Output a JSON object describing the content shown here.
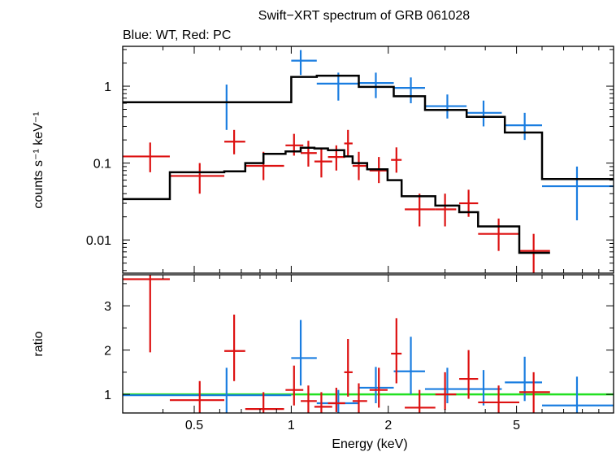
{
  "chart_data": {
    "type": "scatter",
    "title": "Swift−XRT spectrum of GRB 061028",
    "subtitle": "Blue: WT, Red: PC",
    "xlabel": "Energy (keV)",
    "x_scale": "log",
    "xlim": [
      0.3,
      10
    ],
    "x_ticks": [
      {
        "v": 0.5,
        "label": "0.5"
      },
      {
        "v": 1,
        "label": "1"
      },
      {
        "v": 2,
        "label": "2"
      },
      {
        "v": 5,
        "label": "5"
      }
    ],
    "panels": [
      {
        "id": "spectrum",
        "ylabel": "counts s⁻¹ keV⁻¹",
        "y_scale": "log",
        "ylim": [
          0.0037,
          3.3
        ],
        "y_ticks": [
          {
            "v": 1,
            "label": "1"
          },
          {
            "v": 0.1,
            "label": "0.1"
          },
          {
            "v": 0.01,
            "label": "0.01"
          }
        ],
        "series": [
          {
            "color": "#1a7de0",
            "kind": "errorbar",
            "points": [
              {
                "x": 0.63,
                "xlo": 0.3,
                "xhi": 1.0,
                "y": 0.62,
                "ylo": 0.27,
                "yhi": 1.05
              },
              {
                "x": 1.07,
                "xlo": 1.0,
                "xhi": 1.2,
                "y": 2.15,
                "ylo": 1.4,
                "yhi": 2.95
              },
              {
                "x": 1.4,
                "xlo": 1.2,
                "xhi": 1.62,
                "y": 1.08,
                "ylo": 0.65,
                "yhi": 1.5
              },
              {
                "x": 1.83,
                "xlo": 1.62,
                "xhi": 2.08,
                "y": 1.1,
                "ylo": 0.7,
                "yhi": 1.5
              },
              {
                "x": 2.35,
                "xlo": 2.08,
                "xhi": 2.6,
                "y": 0.95,
                "ylo": 0.6,
                "yhi": 1.3
              },
              {
                "x": 3.05,
                "xlo": 2.6,
                "xhi": 3.5,
                "y": 0.55,
                "ylo": 0.38,
                "yhi": 0.78
              },
              {
                "x": 3.95,
                "xlo": 3.5,
                "xhi": 4.5,
                "y": 0.45,
                "ylo": 0.3,
                "yhi": 0.65
              },
              {
                "x": 5.3,
                "xlo": 4.6,
                "xhi": 6.0,
                "y": 0.31,
                "ylo": 0.2,
                "yhi": 0.45
              },
              {
                "x": 7.7,
                "xlo": 6.0,
                "xhi": 10.0,
                "y": 0.05,
                "ylo": 0.018,
                "yhi": 0.09
              }
            ]
          },
          {
            "color": "#dd1111",
            "kind": "errorbar",
            "points": [
              {
                "x": 0.365,
                "xlo": 0.3,
                "xhi": 0.42,
                "y": 0.122,
                "ylo": 0.076,
                "yhi": 0.185
              },
              {
                "x": 0.52,
                "xlo": 0.42,
                "xhi": 0.62,
                "y": 0.068,
                "ylo": 0.04,
                "yhi": 0.1
              },
              {
                "x": 0.665,
                "xlo": 0.62,
                "xhi": 0.72,
                "y": 0.19,
                "ylo": 0.13,
                "yhi": 0.27
              },
              {
                "x": 0.82,
                "xlo": 0.72,
                "xhi": 0.95,
                "y": 0.092,
                "ylo": 0.06,
                "yhi": 0.14
              },
              {
                "x": 1.02,
                "xlo": 0.96,
                "xhi": 1.09,
                "y": 0.17,
                "ylo": 0.125,
                "yhi": 0.24
              },
              {
                "x": 1.13,
                "xlo": 1.07,
                "xhi": 1.2,
                "y": 0.135,
                "ylo": 0.09,
                "yhi": 0.195
              },
              {
                "x": 1.24,
                "xlo": 1.18,
                "xhi": 1.34,
                "y": 0.105,
                "ylo": 0.065,
                "yhi": 0.155
              },
              {
                "x": 1.38,
                "xlo": 1.3,
                "xhi": 1.47,
                "y": 0.12,
                "ylo": 0.08,
                "yhi": 0.17
              },
              {
                "x": 1.5,
                "xlo": 1.46,
                "xhi": 1.55,
                "y": 0.18,
                "ylo": 0.12,
                "yhi": 0.27
              },
              {
                "x": 1.62,
                "xlo": 1.55,
                "xhi": 1.72,
                "y": 0.092,
                "ylo": 0.06,
                "yhi": 0.14
              },
              {
                "x": 1.87,
                "xlo": 1.75,
                "xhi": 1.99,
                "y": 0.08,
                "ylo": 0.055,
                "yhi": 0.12
              },
              {
                "x": 2.12,
                "xlo": 2.04,
                "xhi": 2.2,
                "y": 0.11,
                "ylo": 0.075,
                "yhi": 0.16
              },
              {
                "x": 2.5,
                "xlo": 2.25,
                "xhi": 2.8,
                "y": 0.025,
                "ylo": 0.015,
                "yhi": 0.04
              },
              {
                "x": 3.0,
                "xlo": 2.8,
                "xhi": 3.25,
                "y": 0.025,
                "ylo": 0.015,
                "yhi": 0.04
              },
              {
                "x": 3.55,
                "xlo": 3.32,
                "xhi": 3.8,
                "y": 0.03,
                "ylo": 0.02,
                "yhi": 0.045
              },
              {
                "x": 4.4,
                "xlo": 3.8,
                "xhi": 5.1,
                "y": 0.012,
                "ylo": 0.0072,
                "yhi": 0.019
              },
              {
                "x": 5.65,
                "xlo": 5.1,
                "xhi": 6.35,
                "y": 0.0072,
                "ylo": 0.0037,
                "yhi": 0.012
              }
            ]
          },
          {
            "color": "#000000",
            "kind": "step",
            "edges": [
              0.3,
              1.0,
              1.2,
              1.62,
              2.08,
              2.6,
              3.5,
              4.6,
              6.0,
              10.0
            ],
            "values": [
              0.62,
              1.32,
              1.37,
              0.98,
              0.74,
              0.49,
              0.4,
              0.25,
              0.062
            ]
          },
          {
            "color": "#000000",
            "kind": "step",
            "edges": [
              0.3,
              0.42,
              0.62,
              0.72,
              0.82,
              0.96,
              1.07,
              1.18,
              1.3,
              1.46,
              1.55,
              1.72,
              1.99,
              2.2,
              2.8,
              3.32,
              3.8,
              5.1,
              6.35
            ],
            "values": [
              0.034,
              0.076,
              0.078,
              0.1,
              0.132,
              0.142,
              0.158,
              0.155,
              0.147,
              0.122,
              0.1,
              0.083,
              0.06,
              0.037,
              0.028,
              0.023,
              0.015,
              0.0068
            ]
          }
        ]
      },
      {
        "id": "ratio",
        "ylabel": "ratio",
        "y_scale": "linear",
        "ylim": [
          0.58,
          3.7
        ],
        "y_ticks": [
          {
            "v": 1,
            "label": "1"
          },
          {
            "v": 2,
            "label": "2"
          },
          {
            "v": 3,
            "label": "3"
          }
        ],
        "reference_line": {
          "y": 1.0,
          "color": "#22e022"
        },
        "series": [
          {
            "color": "#1a7de0",
            "kind": "errorbar",
            "points": [
              {
                "x": 0.63,
                "xlo": 0.3,
                "xhi": 1.0,
                "y": 0.98,
                "ylo": 0.58,
                "yhi": 1.6
              },
              {
                "x": 1.07,
                "xlo": 1.0,
                "xhi": 1.2,
                "y": 1.82,
                "ylo": 1.2,
                "yhi": 2.68
              },
              {
                "x": 1.4,
                "xlo": 1.2,
                "xhi": 1.62,
                "y": 0.8,
                "ylo": 0.58,
                "yhi": 1.1
              },
              {
                "x": 1.83,
                "xlo": 1.62,
                "xhi": 2.08,
                "y": 1.15,
                "ylo": 0.8,
                "yhi": 1.62
              },
              {
                "x": 2.35,
                "xlo": 2.08,
                "xhi": 2.6,
                "y": 1.52,
                "ylo": 1.0,
                "yhi": 2.3
              },
              {
                "x": 3.05,
                "xlo": 2.6,
                "xhi": 3.5,
                "y": 1.12,
                "ylo": 0.8,
                "yhi": 1.6
              },
              {
                "x": 3.95,
                "xlo": 3.5,
                "xhi": 4.5,
                "y": 1.12,
                "ylo": 0.75,
                "yhi": 1.55
              },
              {
                "x": 5.3,
                "xlo": 4.6,
                "xhi": 6.0,
                "y": 1.27,
                "ylo": 0.85,
                "yhi": 1.85
              },
              {
                "x": 7.7,
                "xlo": 6.0,
                "xhi": 10.0,
                "y": 0.75,
                "ylo": 0.58,
                "yhi": 1.4
              }
            ]
          },
          {
            "color": "#dd1111",
            "kind": "errorbar",
            "points": [
              {
                "x": 0.365,
                "xlo": 0.3,
                "xhi": 0.42,
                "y": 3.6,
                "ylo": 1.95,
                "yhi": 3.7
              },
              {
                "x": 0.52,
                "xlo": 0.42,
                "xhi": 0.62,
                "y": 0.87,
                "ylo": 0.58,
                "yhi": 1.3
              },
              {
                "x": 0.665,
                "xlo": 0.62,
                "xhi": 0.72,
                "y": 1.98,
                "ylo": 1.3,
                "yhi": 2.8
              },
              {
                "x": 0.82,
                "xlo": 0.72,
                "xhi": 0.95,
                "y": 0.67,
                "ylo": 0.58,
                "yhi": 1.05
              },
              {
                "x": 1.02,
                "xlo": 0.96,
                "xhi": 1.09,
                "y": 1.1,
                "ylo": 0.75,
                "yhi": 1.65
              },
              {
                "x": 1.13,
                "xlo": 1.07,
                "xhi": 1.2,
                "y": 0.85,
                "ylo": 0.58,
                "yhi": 1.2
              },
              {
                "x": 1.24,
                "xlo": 1.18,
                "xhi": 1.34,
                "y": 0.72,
                "ylo": 0.58,
                "yhi": 1.05
              },
              {
                "x": 1.38,
                "xlo": 1.3,
                "xhi": 1.47,
                "y": 0.8,
                "ylo": 0.6,
                "yhi": 1.15
              },
              {
                "x": 1.5,
                "xlo": 1.46,
                "xhi": 1.55,
                "y": 1.5,
                "ylo": 0.95,
                "yhi": 2.25
              },
              {
                "x": 1.62,
                "xlo": 1.55,
                "xhi": 1.72,
                "y": 0.85,
                "ylo": 0.58,
                "yhi": 1.25
              },
              {
                "x": 1.87,
                "xlo": 1.75,
                "xhi": 1.99,
                "y": 1.1,
                "ylo": 0.7,
                "yhi": 1.6
              },
              {
                "x": 2.12,
                "xlo": 2.04,
                "xhi": 2.2,
                "y": 1.92,
                "ylo": 1.25,
                "yhi": 2.72
              },
              {
                "x": 2.5,
                "xlo": 2.25,
                "xhi": 2.8,
                "y": 0.7,
                "ylo": 0.58,
                "yhi": 1.1
              },
              {
                "x": 3.0,
                "xlo": 2.8,
                "xhi": 3.25,
                "y": 1.0,
                "ylo": 0.65,
                "yhi": 1.5
              },
              {
                "x": 3.55,
                "xlo": 3.32,
                "xhi": 3.8,
                "y": 1.35,
                "ylo": 0.9,
                "yhi": 2.0
              },
              {
                "x": 4.4,
                "xlo": 3.8,
                "xhi": 5.1,
                "y": 0.82,
                "ylo": 0.58,
                "yhi": 1.2
              },
              {
                "x": 5.65,
                "xlo": 5.1,
                "xhi": 6.35,
                "y": 1.05,
                "ylo": 0.58,
                "yhi": 1.5
              }
            ]
          }
        ]
      }
    ]
  }
}
